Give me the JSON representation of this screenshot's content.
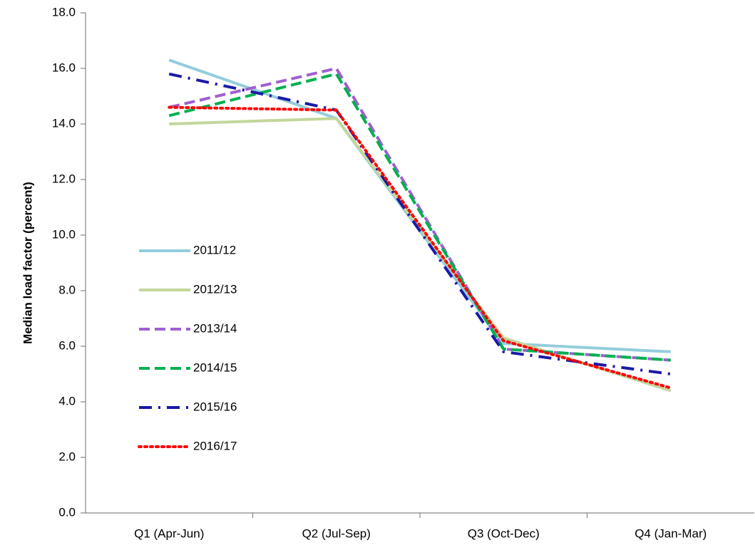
{
  "chart_data": {
    "type": "line",
    "y_label": "Median load factor (percent)",
    "categories": [
      "Q1 (Apr-Jun)",
      "Q2 (Jul-Sep)",
      "Q3 (Oct-Dec)",
      "Q4 (Jan-Mar)"
    ],
    "series": [
      {
        "name": "2011/12",
        "color": "#93cddd",
        "line_style": "solid",
        "values": [
          16.3,
          14.2,
          6.1,
          5.8
        ]
      },
      {
        "name": "2012/13",
        "color": "#c3d69b",
        "line_style": "solid",
        "values": [
          14.0,
          14.2,
          6.3,
          4.4
        ]
      },
      {
        "name": "2013/14",
        "color": "#a05fd0",
        "line_style": "dashed",
        "values": [
          14.6,
          16.0,
          5.9,
          5.5
        ]
      },
      {
        "name": "2014/15",
        "color": "#00b050",
        "line_style": "dashed",
        "values": [
          14.3,
          15.8,
          5.9,
          5.5
        ]
      },
      {
        "name": "2015/16",
        "color": "#1a1aa6",
        "line_style": "dash-dot",
        "values": [
          15.8,
          14.5,
          5.8,
          5.0
        ]
      },
      {
        "name": "2016/17",
        "color": "#ff0000",
        "line_style": "dotted",
        "values": [
          14.6,
          14.5,
          6.2,
          4.5
        ]
      }
    ],
    "ylim": [
      0,
      18
    ],
    "yticks": [
      {
        "value": 0,
        "label": "0.0"
      },
      {
        "value": 2,
        "label": "2.0"
      },
      {
        "value": 4,
        "label": "4.0"
      },
      {
        "value": 6,
        "label": "6.0"
      },
      {
        "value": 8,
        "label": "8.0"
      },
      {
        "value": 10,
        "label": "10.0"
      },
      {
        "value": 12,
        "label": "12.0"
      },
      {
        "value": 14,
        "label": "14.0"
      },
      {
        "value": 16,
        "label": "16.0"
      },
      {
        "value": 18,
        "label": "18.0"
      }
    ],
    "grid": false,
    "legend_position": "left"
  }
}
